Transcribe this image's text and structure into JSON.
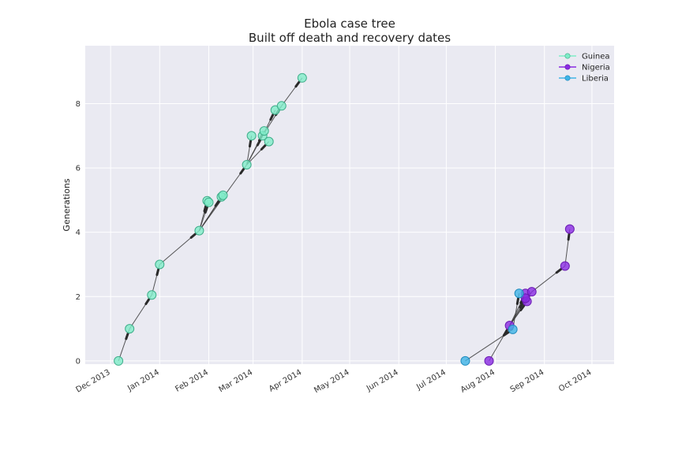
{
  "chart_data": {
    "type": "scatter",
    "title": "Ebola case tree",
    "subtitle": "Built off death and recovery dates",
    "xlabel": "",
    "ylabel": "Generations",
    "xlim": [
      "2013-11-15",
      "2014-10-15"
    ],
    "ylim": [
      -0.1,
      9.8
    ],
    "grid": true,
    "legend": "top-right",
    "x_ticks": [
      {
        "date": "2013-12-01",
        "label": "Dec 2013"
      },
      {
        "date": "2014-01-01",
        "label": "Jan 2014"
      },
      {
        "date": "2014-02-01",
        "label": "Feb 2014"
      },
      {
        "date": "2014-03-01",
        "label": "Mar 2014"
      },
      {
        "date": "2014-04-01",
        "label": "Apr 2014"
      },
      {
        "date": "2014-05-01",
        "label": "May 2014"
      },
      {
        "date": "2014-06-01",
        "label": "Jun 2014"
      },
      {
        "date": "2014-07-01",
        "label": "Jul 2014"
      },
      {
        "date": "2014-08-01",
        "label": "Aug 2014"
      },
      {
        "date": "2014-09-01",
        "label": "Sep 2014"
      },
      {
        "date": "2014-10-01",
        "label": "Oct 2014"
      }
    ],
    "y_ticks": [
      0,
      2,
      4,
      6,
      8
    ],
    "series": [
      {
        "name": "Guinea",
        "color": "#7fecc8",
        "edge": "#3fae8a",
        "points": [
          {
            "id": "g0",
            "x": "2013-12-06",
            "y": 0.0
          },
          {
            "id": "g1",
            "x": "2013-12-13",
            "y": 1.0
          },
          {
            "id": "g2",
            "x": "2013-12-27",
            "y": 2.05
          },
          {
            "id": "g3",
            "x": "2014-01-01",
            "y": 3.0
          },
          {
            "id": "g4",
            "x": "2014-01-26",
            "y": 4.05
          },
          {
            "id": "g5a",
            "x": "2014-01-31",
            "y": 4.98
          },
          {
            "id": "g5b",
            "x": "2014-02-01",
            "y": 4.93
          },
          {
            "id": "g5c",
            "x": "2014-02-09",
            "y": 5.1
          },
          {
            "id": "g5d",
            "x": "2014-02-10",
            "y": 5.15
          },
          {
            "id": "g6",
            "x": "2014-02-25",
            "y": 6.1
          },
          {
            "id": "g7a",
            "x": "2014-02-28",
            "y": 7.0
          },
          {
            "id": "g7b",
            "x": "2014-03-07",
            "y": 7.0
          },
          {
            "id": "g7c",
            "x": "2014-03-08",
            "y": 7.15
          },
          {
            "id": "g7d",
            "x": "2014-03-11",
            "y": 6.82
          },
          {
            "id": "g8a",
            "x": "2014-03-15",
            "y": 7.8
          },
          {
            "id": "g8b",
            "x": "2014-03-19",
            "y": 7.93
          },
          {
            "id": "g9",
            "x": "2014-04-01",
            "y": 8.8
          }
        ],
        "edges": [
          [
            "g0",
            "g1"
          ],
          [
            "g1",
            "g2"
          ],
          [
            "g2",
            "g3"
          ],
          [
            "g3",
            "g4"
          ],
          [
            "g4",
            "g5a"
          ],
          [
            "g4",
            "g5b"
          ],
          [
            "g4",
            "g5c"
          ],
          [
            "g4",
            "g5d"
          ],
          [
            "g4",
            "g6"
          ],
          [
            "g6",
            "g7a"
          ],
          [
            "g6",
            "g7b"
          ],
          [
            "g6",
            "g7c"
          ],
          [
            "g6",
            "g7d"
          ],
          [
            "g7b",
            "g8a"
          ],
          [
            "g7b",
            "g8b"
          ],
          [
            "g8b",
            "g9"
          ]
        ]
      },
      {
        "name": "Nigeria",
        "color": "#8a2be2",
        "edge": "#6a1bb2",
        "points": [
          {
            "id": "n0",
            "x": "2014-07-28",
            "y": 0.0
          },
          {
            "id": "n1",
            "x": "2014-08-10",
            "y": 1.1
          },
          {
            "id": "n2a",
            "x": "2014-08-20",
            "y": 2.1
          },
          {
            "id": "n2b",
            "x": "2014-08-21",
            "y": 1.85
          },
          {
            "id": "n2c",
            "x": "2014-08-24",
            "y": 2.15
          },
          {
            "id": "n2d",
            "x": "2014-08-20",
            "y": 1.95
          },
          {
            "id": "n3",
            "x": "2014-09-14",
            "y": 2.95
          },
          {
            "id": "n4",
            "x": "2014-09-17",
            "y": 4.1
          }
        ],
        "edges": [
          [
            "n0",
            "n1"
          ],
          [
            "n1",
            "n2a"
          ],
          [
            "n1",
            "n2b"
          ],
          [
            "n1",
            "n2c"
          ],
          [
            "n1",
            "n2d"
          ],
          [
            "n2c",
            "n3"
          ],
          [
            "n3",
            "n4"
          ]
        ]
      },
      {
        "name": "Liberia",
        "color": "#3fb4e6",
        "edge": "#1f8bbd",
        "points": [
          {
            "id": "l0",
            "x": "2014-07-13",
            "y": 0.0
          },
          {
            "id": "l1",
            "x": "2014-08-12",
            "y": 0.98
          },
          {
            "id": "l2",
            "x": "2014-08-16",
            "y": 2.1
          }
        ],
        "edges": [
          [
            "l0",
            "l1"
          ],
          [
            "l1",
            "l2"
          ]
        ]
      }
    ]
  }
}
